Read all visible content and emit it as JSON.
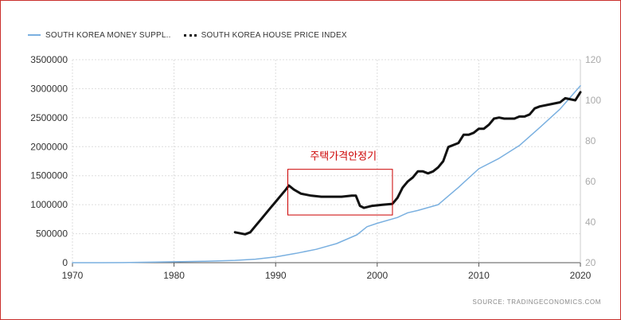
{
  "legend": {
    "series1": "SOUTH KOREA MONEY SUPPL..",
    "series2": "SOUTH KOREA HOUSE PRICE INDEX"
  },
  "source": "SOURCE:  TRADINGECONOMICS.COM",
  "annotation": "주택가격안정기",
  "colors": {
    "money_supply": "#7ab0e0",
    "house_price": "#111111",
    "annotation": "#cc0000"
  },
  "chart_data": {
    "type": "line",
    "title": "",
    "xlabel": "",
    "ylabel": "",
    "xlim": [
      1970,
      2020
    ],
    "x_ticks": [
      1970,
      1980,
      1990,
      2000,
      2010,
      2020
    ],
    "y_left": {
      "lim": [
        0,
        3500000
      ],
      "ticks": [
        0,
        500000,
        1000000,
        1500000,
        2000000,
        2500000,
        3000000,
        3500000
      ]
    },
    "y_right": {
      "lim": [
        20,
        120
      ],
      "ticks": [
        20,
        40,
        60,
        80,
        100,
        120
      ]
    },
    "grid": true,
    "legend_position": "top-left",
    "series": [
      {
        "name": "SOUTH KOREA MONEY SUPPL..",
        "axis": "left",
        "style": "solid",
        "x": [
          1970,
          1975,
          1980,
          1983,
          1986,
          1988,
          1990,
          1992,
          1994,
          1996,
          1998,
          1999,
          2000,
          2002,
          2003,
          2004,
          2006,
          2008,
          2010,
          2012,
          2014,
          2016,
          2018,
          2019,
          2020
        ],
        "y": [
          0,
          2000,
          15000,
          25000,
          40000,
          60000,
          100000,
          160000,
          230000,
          330000,
          480000,
          620000,
          680000,
          780000,
          860000,
          900000,
          1000000,
          1300000,
          1620000,
          1800000,
          2020000,
          2330000,
          2650000,
          2850000,
          3050000
        ]
      },
      {
        "name": "SOUTH KOREA HOUSE PRICE INDEX",
        "axis": "right",
        "style": "dotted",
        "x": [
          1986.0,
          1987.0,
          1987.5,
          1988.0,
          1988.5,
          1989.0,
          1989.5,
          1990.0,
          1990.5,
          1991.0,
          1991.3,
          1991.8,
          1992.5,
          1993.5,
          1994.5,
          1995.5,
          1996.5,
          1997.5,
          1997.9,
          1998.3,
          1998.7,
          1999.5,
          2000.5,
          2001.5,
          2002.0,
          2002.5,
          2003.0,
          2003.5,
          2004.0,
          2004.5,
          2005.0,
          2005.5,
          2006.0,
          2006.5,
          2007.0,
          2008.0,
          2008.5,
          2009.0,
          2009.5,
          2010.0,
          2010.5,
          2011.0,
          2011.5,
          2012.0,
          2012.5,
          2013.5,
          2014.0,
          2014.5,
          2015.0,
          2015.5,
          2016.0,
          2017.0,
          2018.0,
          2018.5,
          2019.5,
          2020.0
        ],
        "y": [
          35,
          34,
          35,
          38,
          41,
          44,
          47,
          50,
          53,
          56,
          58,
          56,
          54,
          53,
          52.5,
          52.5,
          52.5,
          53,
          53,
          48,
          47,
          48,
          48.5,
          49,
          52,
          57,
          60,
          62,
          65,
          65,
          64,
          65,
          67,
          70,
          77,
          79,
          83,
          83,
          84,
          86,
          86,
          88,
          91,
          91.5,
          91,
          91,
          92,
          92,
          93,
          96,
          97,
          98,
          99,
          101,
          100,
          104
        ]
      }
    ]
  }
}
